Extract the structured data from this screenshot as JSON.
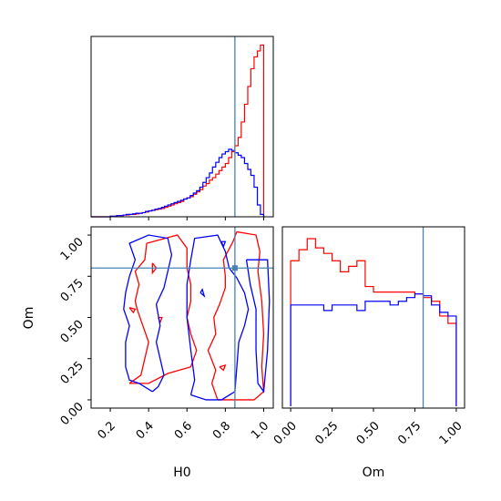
{
  "chart_data": {
    "type": "corner",
    "parameters": [
      "H0",
      "Om"
    ],
    "axis_labels": {
      "x_bottom_left": "H0",
      "x_bottom_right": "Om",
      "y_left": "Om"
    },
    "truth": {
      "H0": 0.85,
      "Om": 0.8
    },
    "colors": {
      "red": "#ff0000",
      "blue": "#0000ff",
      "truth": "#4682b4"
    },
    "h0_range": [
      0.1,
      1.05
    ],
    "om_range": [
      -0.05,
      1.05
    ],
    "h0_ticks": [
      "0.2",
      "0.4",
      "0.6",
      "0.8",
      "1.0"
    ],
    "om_ticks_x": [
      "0.00",
      "0.25",
      "0.50",
      "0.75",
      "1.00"
    ],
    "om_ticks_y": [
      "0.00",
      "0.25",
      "0.50",
      "0.75",
      "1.00"
    ],
    "h0_hist": {
      "bin_edges": [
        0.1,
        0.117,
        0.133,
        0.15,
        0.167,
        0.183,
        0.2,
        0.217,
        0.233,
        0.25,
        0.267,
        0.283,
        0.3,
        0.317,
        0.333,
        0.35,
        0.367,
        0.383,
        0.4,
        0.417,
        0.433,
        0.45,
        0.467,
        0.483,
        0.5,
        0.517,
        0.533,
        0.55,
        0.567,
        0.583,
        0.6,
        0.617,
        0.633,
        0.65,
        0.667,
        0.683,
        0.7,
        0.717,
        0.733,
        0.75,
        0.767,
        0.783,
        0.8,
        0.817,
        0.833,
        0.85,
        0.867,
        0.883,
        0.9,
        0.917,
        0.933,
        0.95,
        0.967,
        0.983,
        1.0
      ],
      "series": [
        {
          "color": "red",
          "values": [
            0,
            0,
            0,
            0,
            0,
            0,
            0.5,
            0.5,
            1,
            1,
            1.5,
            1.5,
            2,
            2,
            2.5,
            3,
            3.5,
            4,
            5,
            5.5,
            6,
            6.5,
            7,
            8,
            9,
            10,
            11,
            12,
            13,
            15,
            16,
            17,
            19,
            21,
            23,
            26,
            28,
            31,
            33,
            36,
            39,
            42,
            45,
            50,
            55,
            60,
            67,
            80,
            95,
            110,
            125,
            135,
            140,
            145
          ]
        },
        {
          "color": "blue",
          "values": [
            0,
            0,
            0,
            0,
            0,
            0,
            0.5,
            0.5,
            1,
            1,
            1.5,
            2,
            2,
            2.5,
            3,
            3,
            3.5,
            4.5,
            5,
            5.5,
            6.5,
            7,
            8,
            9,
            10,
            11,
            12,
            13,
            14,
            15,
            16,
            18,
            20,
            22,
            25,
            29,
            33,
            37,
            42,
            46,
            50,
            53,
            55,
            57,
            56,
            54,
            52,
            50,
            45,
            40,
            35,
            25,
            10,
            2
          ]
        }
      ]
    },
    "om_hist": {
      "bin_edges": [
        0.0,
        0.05,
        0.1,
        0.15,
        0.2,
        0.25,
        0.3,
        0.35,
        0.4,
        0.45,
        0.5,
        0.55,
        0.6,
        0.65,
        0.7,
        0.75,
        0.8,
        0.85,
        0.9,
        0.95,
        1.0
      ],
      "series": [
        {
          "color": "red",
          "values": [
            0.8,
            0.86,
            0.92,
            0.87,
            0.84,
            0.8,
            0.74,
            0.77,
            0.8,
            0.66,
            0.63,
            0.63,
            0.63,
            0.63,
            0.63,
            0.62,
            0.6,
            0.58,
            0.5,
            0.46
          ]
        },
        {
          "color": "blue",
          "values": [
            0.56,
            0.56,
            0.56,
            0.56,
            0.53,
            0.56,
            0.56,
            0.56,
            0.53,
            0.58,
            0.58,
            0.58,
            0.56,
            0.58,
            0.6,
            0.62,
            0.61,
            0.56,
            0.52,
            0.5
          ]
        }
      ]
    },
    "contours_2d": {
      "x": "H0",
      "y": "Om",
      "series": [
        {
          "color": "red",
          "paths": [
            [
              [
                0.3,
                0.1
              ],
              [
                0.36,
                0.15
              ],
              [
                0.38,
                0.25
              ],
              [
                0.4,
                0.35
              ],
              [
                0.37,
                0.45
              ],
              [
                0.34,
                0.55
              ],
              [
                0.33,
                0.6
              ],
              [
                0.35,
                0.7
              ],
              [
                0.33,
                0.78
              ],
              [
                0.38,
                0.85
              ],
              [
                0.39,
                0.95
              ],
              [
                0.55,
                1.0
              ],
              [
                0.6,
                0.92
              ],
              [
                0.6,
                0.8
              ],
              [
                0.62,
                0.7
              ],
              [
                0.62,
                0.6
              ],
              [
                0.6,
                0.5
              ],
              [
                0.62,
                0.4
              ],
              [
                0.65,
                0.3
              ],
              [
                0.62,
                0.2
              ],
              [
                0.5,
                0.16
              ],
              [
                0.4,
                0.1
              ],
              [
                0.3,
                0.1
              ]
            ],
            [
              [
                0.76,
                0.0
              ],
              [
                0.73,
                0.1
              ],
              [
                0.75,
                0.18
              ],
              [
                0.71,
                0.3
              ],
              [
                0.75,
                0.4
              ],
              [
                0.74,
                0.5
              ],
              [
                0.77,
                0.58
              ],
              [
                0.8,
                0.68
              ],
              [
                0.8,
                0.75
              ],
              [
                0.79,
                0.85
              ],
              [
                0.84,
                0.96
              ],
              [
                0.86,
                1.02
              ],
              [
                0.96,
                1.0
              ],
              [
                0.98,
                0.9
              ],
              [
                0.97,
                0.78
              ],
              [
                0.99,
                0.6
              ],
              [
                1.0,
                0.4
              ],
              [
                0.99,
                0.2
              ],
              [
                1.0,
                0.05
              ],
              [
                0.95,
                0.0
              ],
              [
                0.85,
                0.0
              ],
              [
                0.76,
                0.0
              ]
            ],
            [
              [
                0.42,
                0.83
              ],
              [
                0.44,
                0.8
              ],
              [
                0.42,
                0.77
              ],
              [
                0.42,
                0.83
              ]
            ],
            [
              [
                0.45,
                0.5
              ],
              [
                0.46,
                0.47
              ],
              [
                0.47,
                0.5
              ],
              [
                0.45,
                0.5
              ]
            ],
            [
              [
                0.3,
                0.56
              ],
              [
                0.32,
                0.53
              ],
              [
                0.33,
                0.55
              ],
              [
                0.3,
                0.56
              ]
            ],
            [
              [
                0.77,
                0.2
              ],
              [
                0.79,
                0.18
              ],
              [
                0.8,
                0.21
              ],
              [
                0.77,
                0.2
              ]
            ]
          ]
        },
        {
          "color": "blue",
          "paths": [
            [
              [
                0.42,
                0.05
              ],
              [
                0.35,
                0.1
              ],
              [
                0.3,
                0.12
              ],
              [
                0.28,
                0.2
              ],
              [
                0.28,
                0.35
              ],
              [
                0.3,
                0.45
              ],
              [
                0.27,
                0.55
              ],
              [
                0.28,
                0.65
              ],
              [
                0.3,
                0.75
              ],
              [
                0.33,
                0.85
              ],
              [
                0.3,
                0.95
              ],
              [
                0.4,
                1.0
              ],
              [
                0.5,
                0.98
              ],
              [
                0.52,
                0.88
              ],
              [
                0.5,
                0.78
              ],
              [
                0.48,
                0.68
              ],
              [
                0.44,
                0.58
              ],
              [
                0.46,
                0.45
              ],
              [
                0.44,
                0.35
              ],
              [
                0.46,
                0.25
              ],
              [
                0.48,
                0.15
              ],
              [
                0.45,
                0.08
              ],
              [
                0.42,
                0.05
              ]
            ],
            [
              [
                0.62,
                0.03
              ],
              [
                0.64,
                0.12
              ],
              [
                0.62,
                0.3
              ],
              [
                0.6,
                0.5
              ],
              [
                0.6,
                0.7
              ],
              [
                0.62,
                0.85
              ],
              [
                0.64,
                0.98
              ],
              [
                0.76,
                1.0
              ],
              [
                0.8,
                0.9
              ],
              [
                0.82,
                0.8
              ],
              [
                0.86,
                0.74
              ],
              [
                0.9,
                0.65
              ],
              [
                0.92,
                0.55
              ],
              [
                0.9,
                0.45
              ],
              [
                0.87,
                0.35
              ],
              [
                0.86,
                0.2
              ],
              [
                0.85,
                0.05
              ],
              [
                0.78,
                0.0
              ],
              [
                0.7,
                0.0
              ],
              [
                0.62,
                0.03
              ]
            ],
            [
              [
                0.91,
                0.85
              ],
              [
                0.93,
                0.7
              ],
              [
                0.96,
                0.55
              ],
              [
                0.96,
                0.3
              ],
              [
                0.97,
                0.1
              ],
              [
                1.0,
                0.05
              ],
              [
                1.02,
                0.3
              ],
              [
                1.03,
                0.6
              ],
              [
                1.02,
                0.85
              ],
              [
                0.91,
                0.85
              ]
            ],
            [
              [
                0.67,
                0.65
              ],
              [
                0.69,
                0.63
              ],
              [
                0.68,
                0.67
              ],
              [
                0.67,
                0.65
              ]
            ],
            [
              [
                0.78,
                0.96
              ],
              [
                0.79,
                0.93
              ],
              [
                0.8,
                0.96
              ],
              [
                0.78,
                0.96
              ]
            ]
          ]
        }
      ]
    }
  }
}
